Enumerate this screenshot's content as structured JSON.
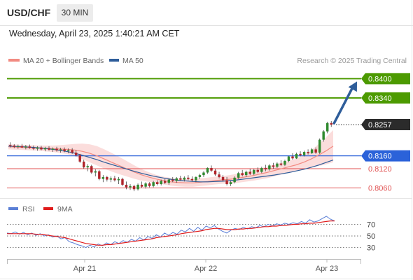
{
  "header": {
    "symbol": "USD/CHF",
    "timeframe": "30 MIN",
    "datetime": "Wednesday, April 23, 2025 1:40:21 AM CET"
  },
  "chart_data": {
    "type": "candlestick",
    "legend": [
      {
        "label": "MA 20 + Bollinger Bands",
        "color": "#f28b82"
      },
      {
        "label": "MA 50",
        "color": "#2e5d9a"
      }
    ],
    "credit": "Research © 2025 Trading Central",
    "current_price": {
      "value": 0.8257,
      "label": "0.8257"
    },
    "targets": [
      {
        "value": 0.84,
        "label": "0.8400",
        "color": "#4c9a00"
      },
      {
        "value": 0.834,
        "label": "0.8340",
        "color": "#4c9a00"
      }
    ],
    "pivot": {
      "value": 0.816,
      "label": "0.8160",
      "color": "#2b62d9"
    },
    "supports": [
      {
        "value": 0.812,
        "label": "0.8120",
        "color": "#e05050"
      },
      {
        "value": 0.806,
        "label": "0.8060",
        "color": "#e05050"
      }
    ],
    "x_ticks": [
      "Apr 21",
      "Apr 22",
      "Apr 23"
    ],
    "y_range": [
      0.8035,
      0.844
    ],
    "candles": [
      [
        0.8194,
        0.8202,
        0.8186,
        0.8192
      ],
      [
        0.8192,
        0.8196,
        0.8184,
        0.8188
      ],
      [
        0.8188,
        0.8195,
        0.8182,
        0.819
      ],
      [
        0.819,
        0.8197,
        0.8184,
        0.8186
      ],
      [
        0.8186,
        0.8194,
        0.818,
        0.8189
      ],
      [
        0.8189,
        0.8195,
        0.8182,
        0.8185
      ],
      [
        0.8185,
        0.8192,
        0.8178,
        0.8182
      ],
      [
        0.8182,
        0.819,
        0.8176,
        0.8186
      ],
      [
        0.8186,
        0.8191,
        0.8177,
        0.818
      ],
      [
        0.818,
        0.8188,
        0.8174,
        0.8184
      ],
      [
        0.8184,
        0.819,
        0.8176,
        0.8179
      ],
      [
        0.8179,
        0.8186,
        0.8172,
        0.8182
      ],
      [
        0.8182,
        0.8188,
        0.8173,
        0.8177
      ],
      [
        0.8177,
        0.8185,
        0.817,
        0.818
      ],
      [
        0.818,
        0.8186,
        0.8171,
        0.8175
      ],
      [
        0.8175,
        0.8183,
        0.8168,
        0.8178
      ],
      [
        0.8178,
        0.8184,
        0.8166,
        0.817
      ],
      [
        0.817,
        0.8178,
        0.8158,
        0.8162
      ],
      [
        0.8162,
        0.8166,
        0.8138,
        0.8142
      ],
      [
        0.8142,
        0.8148,
        0.812,
        0.8124
      ],
      [
        0.8124,
        0.8134,
        0.8112,
        0.8128
      ],
      [
        0.8128,
        0.8132,
        0.8104,
        0.8108
      ],
      [
        0.8108,
        0.8118,
        0.8096,
        0.8112
      ],
      [
        0.8112,
        0.8116,
        0.8084,
        0.8088
      ],
      [
        0.8088,
        0.81,
        0.8078,
        0.8094
      ],
      [
        0.8094,
        0.8098,
        0.808,
        0.8086
      ],
      [
        0.8086,
        0.8096,
        0.8078,
        0.809
      ],
      [
        0.809,
        0.8098,
        0.808,
        0.8084
      ],
      [
        0.8084,
        0.8094,
        0.8072,
        0.8088
      ],
      [
        0.8088,
        0.8092,
        0.8066,
        0.807
      ],
      [
        0.807,
        0.808,
        0.8056,
        0.8062
      ],
      [
        0.8062,
        0.8072,
        0.8054,
        0.8066
      ],
      [
        0.8066,
        0.807,
        0.805,
        0.8056
      ],
      [
        0.8056,
        0.8074,
        0.8052,
        0.807
      ],
      [
        0.807,
        0.808,
        0.806,
        0.8064
      ],
      [
        0.8064,
        0.8078,
        0.8058,
        0.8074
      ],
      [
        0.8074,
        0.8078,
        0.8062,
        0.8066
      ],
      [
        0.8066,
        0.8082,
        0.8062,
        0.8078
      ],
      [
        0.8078,
        0.8084,
        0.8068,
        0.8072
      ],
      [
        0.8072,
        0.8086,
        0.8068,
        0.8082
      ],
      [
        0.8082,
        0.8088,
        0.8072,
        0.8076
      ],
      [
        0.8076,
        0.809,
        0.807,
        0.8086
      ],
      [
        0.8086,
        0.8094,
        0.8078,
        0.8082
      ],
      [
        0.8082,
        0.8094,
        0.8076,
        0.809
      ],
      [
        0.809,
        0.8098,
        0.8082,
        0.8086
      ],
      [
        0.8086,
        0.8096,
        0.808,
        0.8092
      ],
      [
        0.8092,
        0.81,
        0.8084,
        0.8088
      ],
      [
        0.8088,
        0.8096,
        0.808,
        0.8084
      ],
      [
        0.8084,
        0.8096,
        0.8078,
        0.8094
      ],
      [
        0.8094,
        0.8104,
        0.8088,
        0.81
      ],
      [
        0.81,
        0.8112,
        0.8094,
        0.8108
      ],
      [
        0.8108,
        0.8124,
        0.8104,
        0.8122
      ],
      [
        0.8122,
        0.813,
        0.811,
        0.8114
      ],
      [
        0.8114,
        0.812,
        0.8098,
        0.8102
      ],
      [
        0.8102,
        0.811,
        0.809,
        0.8094
      ],
      [
        0.8094,
        0.81,
        0.808,
        0.8084
      ],
      [
        0.8084,
        0.8094,
        0.8068,
        0.8072
      ],
      [
        0.8072,
        0.8082,
        0.8066,
        0.8078
      ],
      [
        0.8078,
        0.8096,
        0.8074,
        0.8092
      ],
      [
        0.8092,
        0.811,
        0.8088,
        0.8106
      ],
      [
        0.8106,
        0.8116,
        0.8096,
        0.81
      ],
      [
        0.81,
        0.8114,
        0.8094,
        0.811
      ],
      [
        0.811,
        0.812,
        0.81,
        0.8104
      ],
      [
        0.8104,
        0.812,
        0.81,
        0.8116
      ],
      [
        0.8116,
        0.8124,
        0.8106,
        0.811
      ],
      [
        0.811,
        0.8126,
        0.8106,
        0.8122
      ],
      [
        0.8122,
        0.8132,
        0.8112,
        0.8118
      ],
      [
        0.8118,
        0.8134,
        0.8114,
        0.813
      ],
      [
        0.813,
        0.8138,
        0.812,
        0.8126
      ],
      [
        0.8126,
        0.814,
        0.8122,
        0.8136
      ],
      [
        0.8136,
        0.8146,
        0.8128,
        0.8132
      ],
      [
        0.8132,
        0.8148,
        0.8128,
        0.8144
      ],
      [
        0.8144,
        0.816,
        0.814,
        0.8158
      ],
      [
        0.8158,
        0.8168,
        0.8148,
        0.8152
      ],
      [
        0.8152,
        0.817,
        0.815,
        0.8166
      ],
      [
        0.8166,
        0.8174,
        0.8158,
        0.8162
      ],
      [
        0.8162,
        0.8176,
        0.8158,
        0.8172
      ],
      [
        0.8172,
        0.818,
        0.8164,
        0.8168
      ],
      [
        0.8168,
        0.8184,
        0.8166,
        0.818
      ],
      [
        0.818,
        0.8186,
        0.8166,
        0.817
      ],
      [
        0.817,
        0.8214,
        0.8166,
        0.821
      ],
      [
        0.821,
        0.824,
        0.8204,
        0.8236
      ],
      [
        0.8236,
        0.8266,
        0.823,
        0.8262
      ],
      [
        0.8262,
        0.8268,
        0.825,
        0.8257
      ]
    ],
    "ma20": [
      0.8188,
      0.8187,
      0.8186,
      0.8185,
      0.8184,
      0.8183,
      0.8182,
      0.8181,
      0.818,
      0.8178,
      0.8174,
      0.8168,
      0.816,
      0.815,
      0.814,
      0.813,
      0.812,
      0.811,
      0.8101,
      0.8094,
      0.8088,
      0.8083,
      0.8079,
      0.8077,
      0.8076,
      0.8076,
      0.8078,
      0.808,
      0.8083,
      0.8085,
      0.8087,
      0.809,
      0.8094,
      0.8098,
      0.8103,
      0.8108,
      0.8114,
      0.812,
      0.8126,
      0.8132,
      0.814,
      0.815,
      0.8162,
      0.8175,
      0.819
    ],
    "ma50": [
      0.819,
      0.8189,
      0.8188,
      0.8187,
      0.8185,
      0.8183,
      0.818,
      0.8177,
      0.8173,
      0.8168,
      0.8162,
      0.8155,
      0.8148,
      0.814,
      0.8133,
      0.8126,
      0.8119,
      0.8112,
      0.8106,
      0.81,
      0.8095,
      0.8091,
      0.8087,
      0.8084,
      0.8082,
      0.808,
      0.8079,
      0.8079,
      0.808,
      0.8081,
      0.8083,
      0.8085,
      0.8088,
      0.8091,
      0.8094,
      0.8097,
      0.81,
      0.8104,
      0.8108,
      0.8113,
      0.8118,
      0.8124,
      0.8131,
      0.8139,
      0.8147
    ],
    "bb_width": [
      0.0008,
      0.0008,
      0.0008,
      0.0008,
      0.0008,
      0.0009,
      0.001,
      0.0012,
      0.0015,
      0.0019,
      0.0024,
      0.0028,
      0.003,
      0.003,
      0.0029,
      0.0027,
      0.0024,
      0.0021,
      0.0018,
      0.0015,
      0.0013,
      0.0012,
      0.0012,
      0.0012,
      0.0012,
      0.0012,
      0.0012,
      0.0012,
      0.0012,
      0.0012,
      0.0013,
      0.0014,
      0.0015,
      0.0016,
      0.0017,
      0.0018,
      0.0018,
      0.0018,
      0.0018,
      0.0019,
      0.0022,
      0.0027,
      0.0034,
      0.0042,
      0.005
    ],
    "rsi": {
      "legend": [
        {
          "label": "RSI",
          "color": "#5b7fd6"
        },
        {
          "label": "9MA",
          "color": "#e01c1c"
        }
      ],
      "levels": [
        70,
        50,
        30
      ],
      "level_labels": [
        "70",
        "50",
        "30"
      ],
      "y_range": [
        15,
        90
      ],
      "rsi_values": [
        55,
        54,
        57,
        53,
        56,
        52,
        55,
        51,
        54,
        50,
        52,
        48,
        50,
        45,
        47,
        40,
        38,
        35,
        33,
        30,
        34,
        31,
        36,
        33,
        38,
        35,
        40,
        37,
        42,
        39,
        44,
        41,
        47,
        43,
        49,
        46,
        52,
        48,
        55,
        51,
        56,
        53,
        60,
        57,
        63,
        58,
        65,
        60,
        67,
        64,
        68,
        62,
        58,
        55,
        60,
        63,
        61,
        65,
        62,
        66,
        64,
        68,
        66,
        70,
        67,
        71,
        69,
        72,
        70,
        73,
        71,
        75,
        72,
        78,
        74,
        76,
        80,
        84,
        79,
        76
      ],
      "ma_values": [
        54,
        54,
        54,
        54,
        54,
        54,
        54,
        53,
        53,
        52,
        51,
        50,
        49,
        48,
        47,
        45,
        43,
        41,
        39,
        37,
        36,
        35,
        34,
        34,
        35,
        35,
        36,
        37,
        38,
        39,
        40,
        41,
        42,
        43,
        44,
        45,
        47,
        48,
        49,
        50,
        51,
        52,
        54,
        55,
        56,
        57,
        58,
        59,
        61,
        62,
        63,
        63,
        62,
        61,
        61,
        61,
        62,
        62,
        63,
        63,
        64,
        65,
        66,
        66,
        67,
        67,
        68,
        68,
        69,
        70,
        70,
        71,
        71,
        72,
        72,
        73,
        74,
        75,
        76,
        76
      ]
    }
  }
}
